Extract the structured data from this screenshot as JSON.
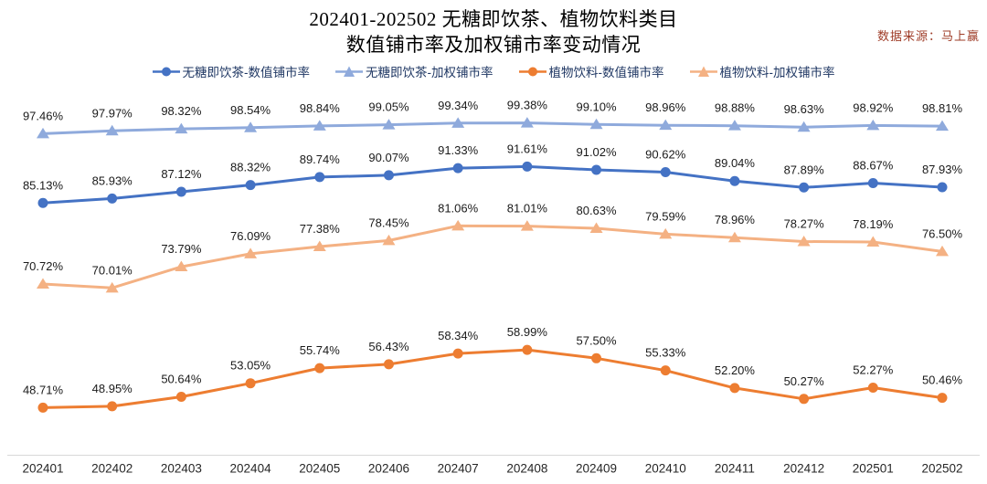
{
  "page": {
    "title_line1": "202401-202502 无糖即饮茶、植物饮料类目",
    "title_line2": "数值铺市率及加权铺市率变动情况",
    "source": "数据来源：马上赢"
  },
  "chart_data": {
    "type": "line",
    "title": "202401-202502 无糖即饮茶、植物饮料类目 数值铺市率及加权铺市率变动情况",
    "categories": [
      "202401",
      "202402",
      "202403",
      "202404",
      "202405",
      "202406",
      "202407",
      "202408",
      "202409",
      "202410",
      "202411",
      "202412",
      "202501",
      "202502"
    ],
    "series": [
      {
        "name": "无糖即饮茶-数值铺市率",
        "marker": "circle",
        "color": "#4472C4",
        "values": [
          85.13,
          85.93,
          87.12,
          88.32,
          89.74,
          90.07,
          91.33,
          91.61,
          91.02,
          90.62,
          89.04,
          87.89,
          88.67,
          87.93
        ]
      },
      {
        "name": "无糖即饮茶-加权铺市率",
        "marker": "triangle",
        "color": "#8FAADC",
        "values": [
          97.46,
          97.97,
          98.32,
          98.54,
          98.84,
          99.05,
          99.34,
          99.38,
          99.1,
          98.96,
          98.88,
          98.63,
          98.92,
          98.81
        ]
      },
      {
        "name": "植物饮料-数值铺市率",
        "marker": "circle",
        "color": "#ED7D31",
        "values": [
          48.71,
          48.95,
          50.64,
          53.05,
          55.74,
          56.43,
          58.34,
          58.99,
          57.5,
          55.33,
          52.2,
          50.27,
          52.27,
          50.46
        ]
      },
      {
        "name": "植物饮料-加权铺市率",
        "marker": "triangle",
        "color": "#F4B183",
        "values": [
          70.72,
          70.01,
          73.79,
          76.09,
          77.38,
          78.45,
          81.06,
          81.01,
          80.63,
          79.59,
          78.96,
          78.27,
          78.19,
          76.5
        ]
      }
    ],
    "ylim": [
      40,
      105
    ],
    "grid": false,
    "legend_position": "top",
    "label_format": "percent-2dp",
    "data_label_color": "#1a1a1a",
    "x_label_color": "#262626",
    "axis_line_color": "#d9d9d9",
    "legend_text_color": "#203864",
    "source_color": "#9e3b26"
  }
}
